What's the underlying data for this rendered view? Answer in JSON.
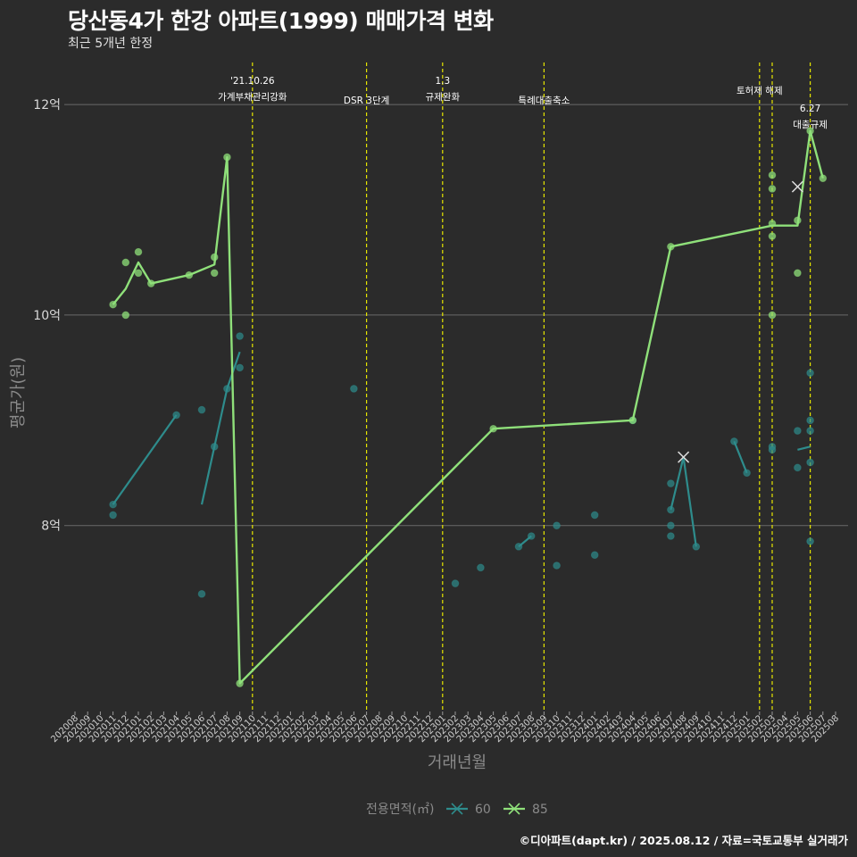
{
  "header": {
    "title": "당산동4가 한강 아파트(1999) 매매가격 변화",
    "subtitle": "최근 5개년 한정"
  },
  "footer": {
    "caption": "©디아파트(dapt.kr) / 2025.08.12 / 자료=국토교통부 실거래가"
  },
  "colors": {
    "background": "#2b2b2b",
    "grid": "#6a6a6a",
    "series60": "#2e8c8c",
    "series85": "#8fe07a",
    "event_line": "#e6e600"
  },
  "chart_data": {
    "type": "line",
    "title": "당산동4가 한강 아파트(1999) 매매가격 변화",
    "xlabel": "거래년월",
    "ylabel": "평균가(원)",
    "ylim": [
      6.25,
      12.4
    ],
    "yticks": [
      {
        "value": 8,
        "label": "8억"
      },
      {
        "value": 10,
        "label": "10억"
      },
      {
        "value": 12,
        "label": "12억"
      }
    ],
    "x_months": [
      "202008",
      "202009",
      "202010",
      "202011",
      "202012",
      "202101",
      "202102",
      "202103",
      "202104",
      "202105",
      "202106",
      "202107",
      "202108",
      "202109",
      "202110",
      "202111",
      "202112",
      "202201",
      "202202",
      "202203",
      "202204",
      "202205",
      "202206",
      "202207",
      "202208",
      "202209",
      "202210",
      "202211",
      "202212",
      "202301",
      "202302",
      "202303",
      "202304",
      "202305",
      "202306",
      "202307",
      "202308",
      "202309",
      "202310",
      "202311",
      "202312",
      "202401",
      "202402",
      "202403",
      "202404",
      "202405",
      "202406",
      "202407",
      "202408",
      "202409",
      "202410",
      "202411",
      "202412",
      "202501",
      "202502",
      "202503",
      "202504",
      "202505",
      "202506",
      "202507",
      "202508"
    ],
    "legend": {
      "title": "전용면적(㎡)",
      "position": "bottom",
      "items": [
        "60",
        "85"
      ]
    },
    "events": [
      {
        "month": "202110",
        "label": "'21.10.26",
        "label2": "가계부채관리강화",
        "level": 0
      },
      {
        "month": "202207",
        "label": "DSR 3단계",
        "label2": "",
        "level": 1
      },
      {
        "month": "202301",
        "label": "1.3",
        "label2": "규제완화",
        "level": 0
      },
      {
        "month": "202309",
        "label": "특례대출축소",
        "label2": "",
        "level": 1
      },
      {
        "month": "202502",
        "label": "토허제 해제",
        "label2": "",
        "level": 0.5
      },
      {
        "month": "202503",
        "label": "",
        "label2": "",
        "level": 0
      },
      {
        "month": "202506",
        "label": "6.27",
        "label2": "대출규제",
        "level": 1.4
      }
    ],
    "series": [
      {
        "name": "60",
        "line_segments": [
          [
            [
              "202011",
              8.2
            ],
            [
              "202104",
              9.05
            ]
          ],
          [
            [
              "202106",
              8.2
            ],
            [
              "202107",
              8.75
            ],
            [
              "202108",
              9.3
            ],
            [
              "202109",
              9.65
            ]
          ],
          [
            [
              "202307",
              7.8
            ],
            [
              "202308",
              7.9
            ]
          ],
          [
            [
              "202407",
              8.15
            ],
            [
              "202408",
              8.65
            ],
            [
              "202409",
              7.8
            ]
          ],
          [
            [
              "202412",
              8.8
            ],
            [
              "202501",
              8.5
            ]
          ],
          [
            [
              "202505",
              8.72
            ],
            [
              "202506",
              8.75
            ]
          ]
        ],
        "points": [
          [
            "202011",
            8.2
          ],
          [
            "202011",
            8.1
          ],
          [
            "202104",
            9.05
          ],
          [
            "202106",
            9.1
          ],
          [
            "202106",
            7.35
          ],
          [
            "202107",
            8.75
          ],
          [
            "202108",
            9.3
          ],
          [
            "202109",
            9.5
          ],
          [
            "202109",
            9.8
          ],
          [
            "202206",
            9.3
          ],
          [
            "202302",
            7.45
          ],
          [
            "202304",
            7.6
          ],
          [
            "202307",
            7.8
          ],
          [
            "202308",
            7.9
          ],
          [
            "202310",
            8.0
          ],
          [
            "202310",
            7.62
          ],
          [
            "202401",
            8.1
          ],
          [
            "202401",
            7.72
          ],
          [
            "202404",
            9.0
          ],
          [
            "202407",
            8.4
          ],
          [
            "202407",
            8.15
          ],
          [
            "202407",
            8.0
          ],
          [
            "202407",
            7.9
          ],
          [
            "202409",
            7.8
          ],
          [
            "202412",
            8.8
          ],
          [
            "202501",
            8.5
          ],
          [
            "202503",
            8.72
          ],
          [
            "202503",
            8.75
          ],
          [
            "202505",
            8.9
          ],
          [
            "202505",
            8.55
          ],
          [
            "202506",
            9.45
          ],
          [
            "202506",
            9.0
          ],
          [
            "202506",
            8.9
          ],
          [
            "202506",
            8.6
          ],
          [
            "202506",
            7.85
          ]
        ],
        "crosses": [
          [
            "202408",
            8.65
          ]
        ]
      },
      {
        "name": "85",
        "line": [
          [
            "202011",
            10.1
          ],
          [
            "202012",
            10.25
          ],
          [
            "202101",
            10.5
          ],
          [
            "202102",
            10.3
          ],
          [
            "202105",
            10.38
          ],
          [
            "202107",
            10.48
          ],
          [
            "202108",
            11.5
          ],
          [
            "202109",
            6.5
          ],
          [
            "202305",
            8.92
          ],
          [
            "202404",
            9.0
          ],
          [
            "202407",
            10.65
          ],
          [
            "202503",
            10.85
          ],
          [
            "202505",
            10.85
          ],
          [
            "202506",
            11.75
          ],
          [
            "202507",
            11.3
          ]
        ],
        "points": [
          [
            "202011",
            10.1
          ],
          [
            "202012",
            10.5
          ],
          [
            "202012",
            10.0
          ],
          [
            "202101",
            10.6
          ],
          [
            "202101",
            10.4
          ],
          [
            "202102",
            10.3
          ],
          [
            "202105",
            10.38
          ],
          [
            "202107",
            10.55
          ],
          [
            "202107",
            10.4
          ],
          [
            "202108",
            11.5
          ],
          [
            "202109",
            6.5
          ],
          [
            "202305",
            8.92
          ],
          [
            "202404",
            9.0
          ],
          [
            "202407",
            10.65
          ],
          [
            "202503",
            11.33
          ],
          [
            "202503",
            11.2
          ],
          [
            "202503",
            10.87
          ],
          [
            "202503",
            10.75
          ],
          [
            "202503",
            10.0
          ],
          [
            "202505",
            10.9
          ],
          [
            "202505",
            10.4
          ],
          [
            "202506",
            11.75
          ],
          [
            "202507",
            11.3
          ]
        ],
        "crosses": [
          [
            "202505",
            11.22
          ]
        ]
      }
    ]
  }
}
